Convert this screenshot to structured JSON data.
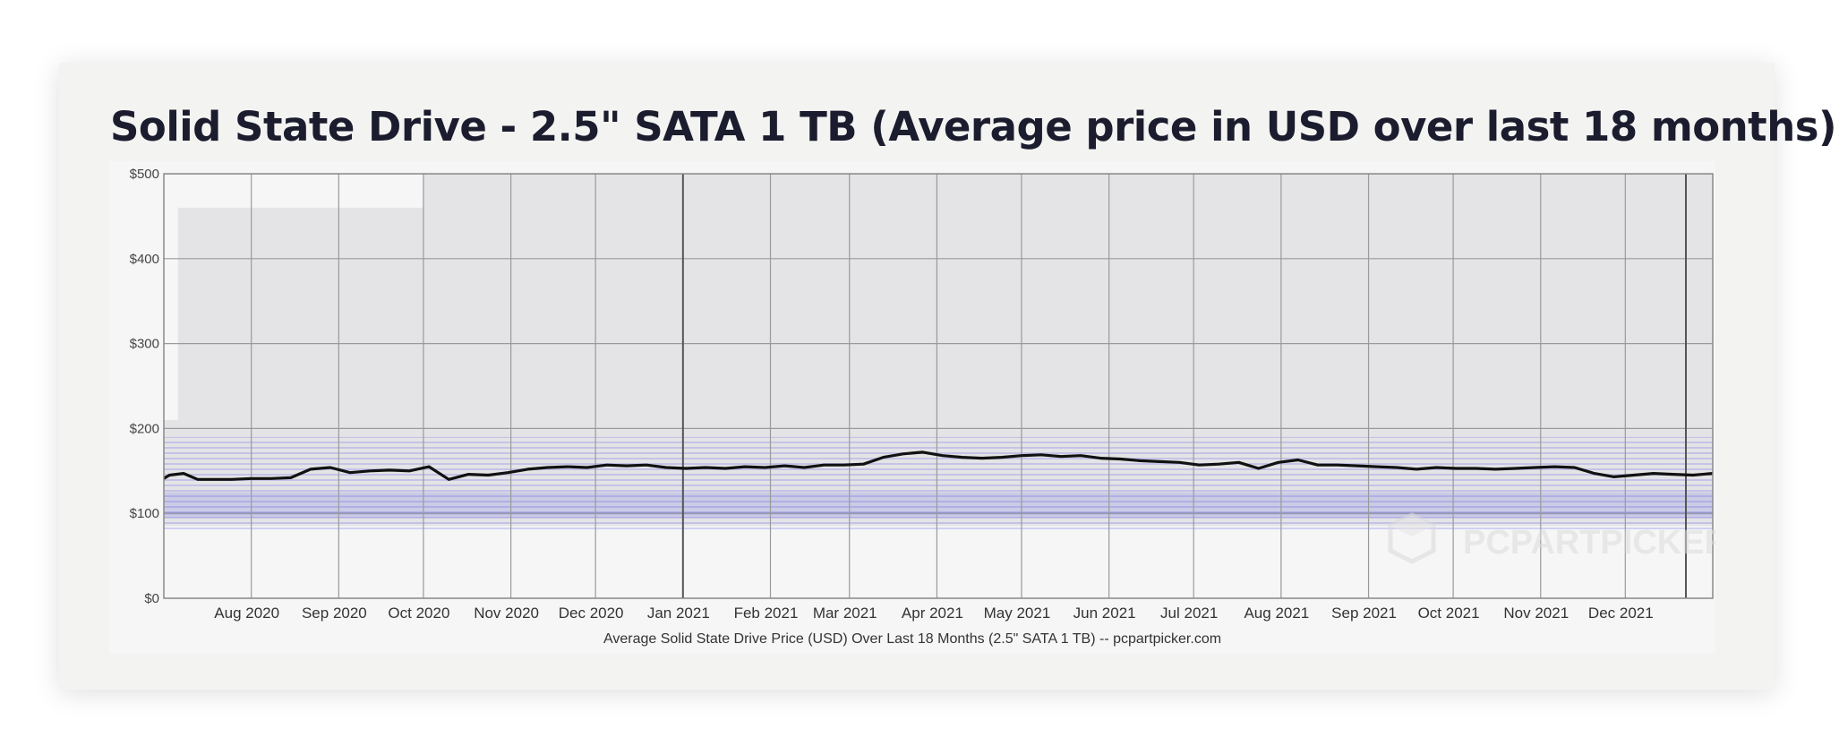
{
  "page": {
    "heading": "Solid State Drive - 2.5\" SATA 1 TB (Average price in USD over last 18 months)"
  },
  "chart_data": {
    "type": "line",
    "title": "Solid State Drive - 2.5\" SATA 1 TB (Average price in USD over last 18 months)",
    "caption": "Average Solid State Drive Price (USD) Over Last 18 Months (2.5\" SATA 1 TB) -- pcpartpicker.com",
    "watermark": "PCPARTPICKER",
    "xlabel": "",
    "ylabel": "",
    "ylim": [
      0,
      500
    ],
    "y_ticks": [
      0,
      100,
      200,
      300,
      400,
      500
    ],
    "y_tick_labels": [
      "$0",
      "$100",
      "$200",
      "$300",
      "$400",
      "$500"
    ],
    "x_range": [
      "2020-07-01",
      "2022-01-01"
    ],
    "x_ticks": [
      "2020-08-01",
      "2020-09-01",
      "2020-10-01",
      "2020-11-01",
      "2020-12-01",
      "2021-01-01",
      "2021-02-01",
      "2021-03-01",
      "2021-04-01",
      "2021-05-01",
      "2021-06-01",
      "2021-07-01",
      "2021-08-01",
      "2021-09-01",
      "2021-10-01",
      "2021-11-01",
      "2021-12-01"
    ],
    "x_tick_labels": [
      "Aug 2020",
      "Sep 2020",
      "Oct 2020",
      "Nov 2020",
      "Dec 2020",
      "Jan 2021",
      "Feb 2021",
      "Mar 2021",
      "Apr 2021",
      "May 2021",
      "Jun 2021",
      "Jul 2021",
      "Aug 2021",
      "Sep 2021",
      "Oct 2021",
      "Nov 2021",
      "Dec 2021"
    ],
    "grid": true,
    "colors": {
      "average_line": "#111111",
      "price_band": "#5a5ae6",
      "background_band": "#e4e4e6",
      "plot_bg": "#f6f6f6",
      "grid": "#9a9a9a"
    },
    "series": [
      {
        "x": [
          "2020-06-28",
          "2020-07-03",
          "2020-07-08",
          "2020-07-13",
          "2020-07-18",
          "2020-07-25",
          "2020-08-01",
          "2020-08-08",
          "2020-08-15",
          "2020-08-22",
          "2020-08-29",
          "2020-09-05",
          "2020-09-12",
          "2020-09-19",
          "2020-09-26",
          "2020-10-03",
          "2020-10-10",
          "2020-10-17",
          "2020-10-24",
          "2020-10-31",
          "2020-11-07",
          "2020-11-14",
          "2020-11-21",
          "2020-11-28",
          "2020-12-05",
          "2020-12-12",
          "2020-12-19",
          "2020-12-26",
          "2021-01-02",
          "2021-01-09",
          "2021-01-16",
          "2021-01-23",
          "2021-01-30",
          "2021-02-06",
          "2021-02-13",
          "2021-02-20",
          "2021-02-27",
          "2021-03-06",
          "2021-03-13",
          "2021-03-20",
          "2021-03-27",
          "2021-04-03",
          "2021-04-10",
          "2021-04-17",
          "2021-04-24",
          "2021-05-01",
          "2021-05-08",
          "2021-05-15",
          "2021-05-22",
          "2021-05-29",
          "2021-06-05",
          "2021-06-12",
          "2021-06-19",
          "2021-06-26",
          "2021-07-03",
          "2021-07-10",
          "2021-07-17",
          "2021-07-24",
          "2021-07-31",
          "2021-08-07",
          "2021-08-14",
          "2021-08-21",
          "2021-08-28",
          "2021-09-04",
          "2021-09-11",
          "2021-09-18",
          "2021-09-25",
          "2021-10-02",
          "2021-10-09",
          "2021-10-16",
          "2021-10-23",
          "2021-10-30",
          "2021-11-06",
          "2021-11-13",
          "2021-11-20",
          "2021-11-27",
          "2021-12-04",
          "2021-12-11",
          "2021-12-18",
          "2021-12-25",
          "2022-01-01"
        ],
        "values": [
          135,
          145,
          147,
          140,
          140,
          140,
          141,
          141,
          142,
          152,
          154,
          148,
          150,
          151,
          150,
          155,
          140,
          146,
          145,
          148,
          152,
          154,
          155,
          154,
          157,
          156,
          157,
          154,
          153,
          154,
          153,
          155,
          154,
          156,
          154,
          157,
          157,
          158,
          166,
          170,
          172,
          168,
          166,
          165,
          166,
          168,
          169,
          167,
          168,
          165,
          164,
          162,
          161,
          160,
          157,
          158,
          160,
          153,
          160,
          163,
          157,
          157,
          156,
          155,
          154,
          152,
          154,
          153,
          153,
          152,
          153,
          154,
          155,
          154,
          147,
          143,
          145,
          147,
          146,
          145,
          147
        ]
      }
    ]
  }
}
